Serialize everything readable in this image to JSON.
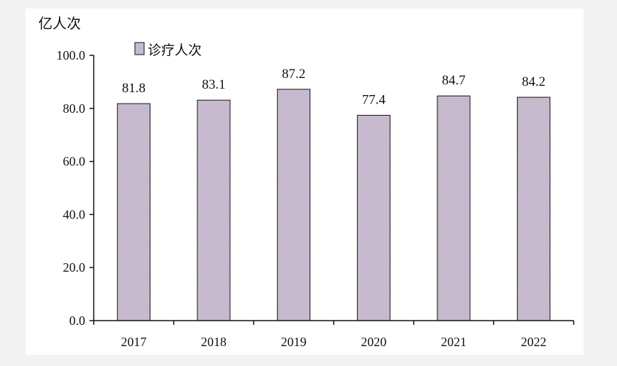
{
  "chart_data": {
    "type": "bar",
    "y_unit_label": "亿人次",
    "categories": [
      "2017",
      "2018",
      "2019",
      "2020",
      "2021",
      "2022"
    ],
    "series": [
      {
        "name": "诊疗人次",
        "values": [
          81.8,
          83.1,
          87.2,
          77.4,
          84.7,
          84.2
        ],
        "value_labels": [
          "81.8",
          "83.1",
          "87.2",
          "77.4",
          "84.7",
          "84.2"
        ]
      }
    ],
    "ylim": [
      0,
      100
    ],
    "y_ticks": [
      "0.0",
      "20.0",
      "40.0",
      "60.0",
      "80.0",
      "100.0"
    ],
    "y_tick_values": [
      0,
      20,
      40,
      60,
      80,
      100
    ],
    "legend_position": "top-left",
    "grid": false,
    "bar_color": "#cfc3d6",
    "bar_pattern_color": "#a898b0",
    "bar_edge_color": "#111111",
    "axis_color": "#111111"
  }
}
